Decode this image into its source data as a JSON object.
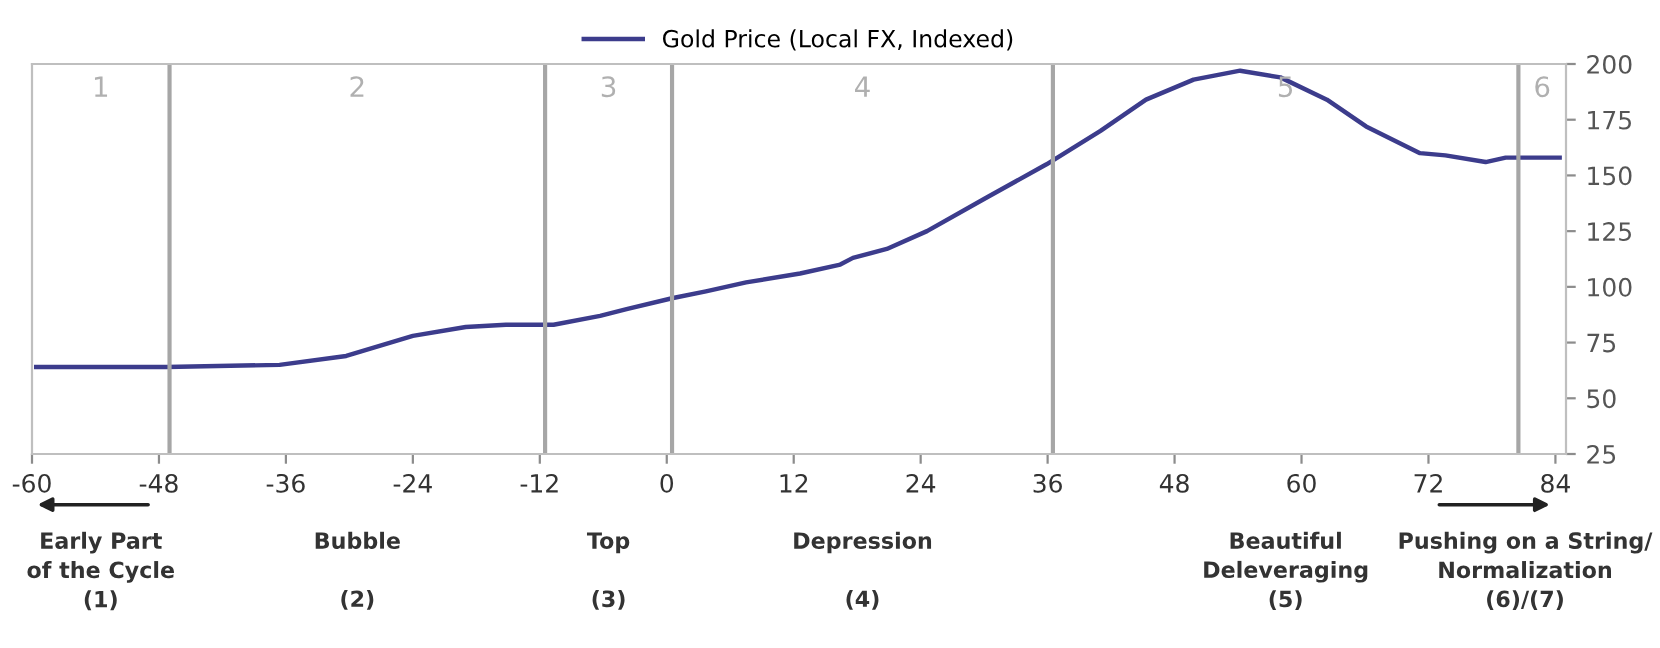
{
  "chart_data": {
    "type": "line",
    "series": [
      {
        "name": "Gold Price (Local FX, Indexed)",
        "color": "#3c3c8c",
        "x": [
          -59.6,
          -47.3,
          -36.6,
          -30.3,
          -24,
          -19,
          -15.2,
          -10.7,
          -6.3,
          -3.8,
          0.6,
          3.7,
          7.5,
          12.6,
          16.4,
          17.6,
          20.8,
          24.6,
          30.2,
          35.9,
          41,
          45.3,
          49.8,
          54.2,
          58,
          62.4,
          66.1,
          71.2,
          73.6,
          77.4,
          79.3,
          84.4
        ],
        "values": [
          64,
          64,
          65,
          69,
          78,
          82,
          83,
          83,
          87,
          90,
          95,
          98,
          102,
          106,
          110,
          113,
          117,
          125,
          140,
          155,
          170,
          184,
          193,
          197,
          194,
          184,
          172,
          160,
          159,
          156,
          158,
          158
        ]
      }
    ],
    "xlim": [
      -60,
      85
    ],
    "xticks": [
      -60,
      -48,
      -36,
      -24,
      -12,
      0,
      12,
      24,
      36,
      48,
      60,
      72,
      84
    ],
    "ylim": [
      25,
      200
    ],
    "yticks": [
      25,
      50,
      75,
      100,
      125,
      150,
      175,
      200
    ],
    "ref_lines": [
      {
        "axis": "x",
        "value": -47,
        "color": "#a6a6a6"
      },
      {
        "axis": "x",
        "value": -11.5,
        "color": "#a6a6a6"
      },
      {
        "axis": "x",
        "value": 0.5,
        "color": "#a6a6a6"
      },
      {
        "axis": "x",
        "value": 36.5,
        "color": "#a6a6a6"
      },
      {
        "axis": "x",
        "value": 80.5,
        "color": "#a6a6a6"
      }
    ],
    "annotations": [
      "1",
      "2",
      "3",
      "4",
      "5",
      "6",
      "Early Part\nof the Cycle\n(1)",
      "Bubble\n\n(2)",
      "Top\n\n(3)",
      "Depression\n\n(4)",
      "Beautiful\nDeleveraging\n(5)",
      "Pushing on a String/\nNormalization\n(6)/(7)"
    ],
    "legend": "top",
    "grid": false,
    "marker": "none",
    "line_style": "solid"
  }
}
